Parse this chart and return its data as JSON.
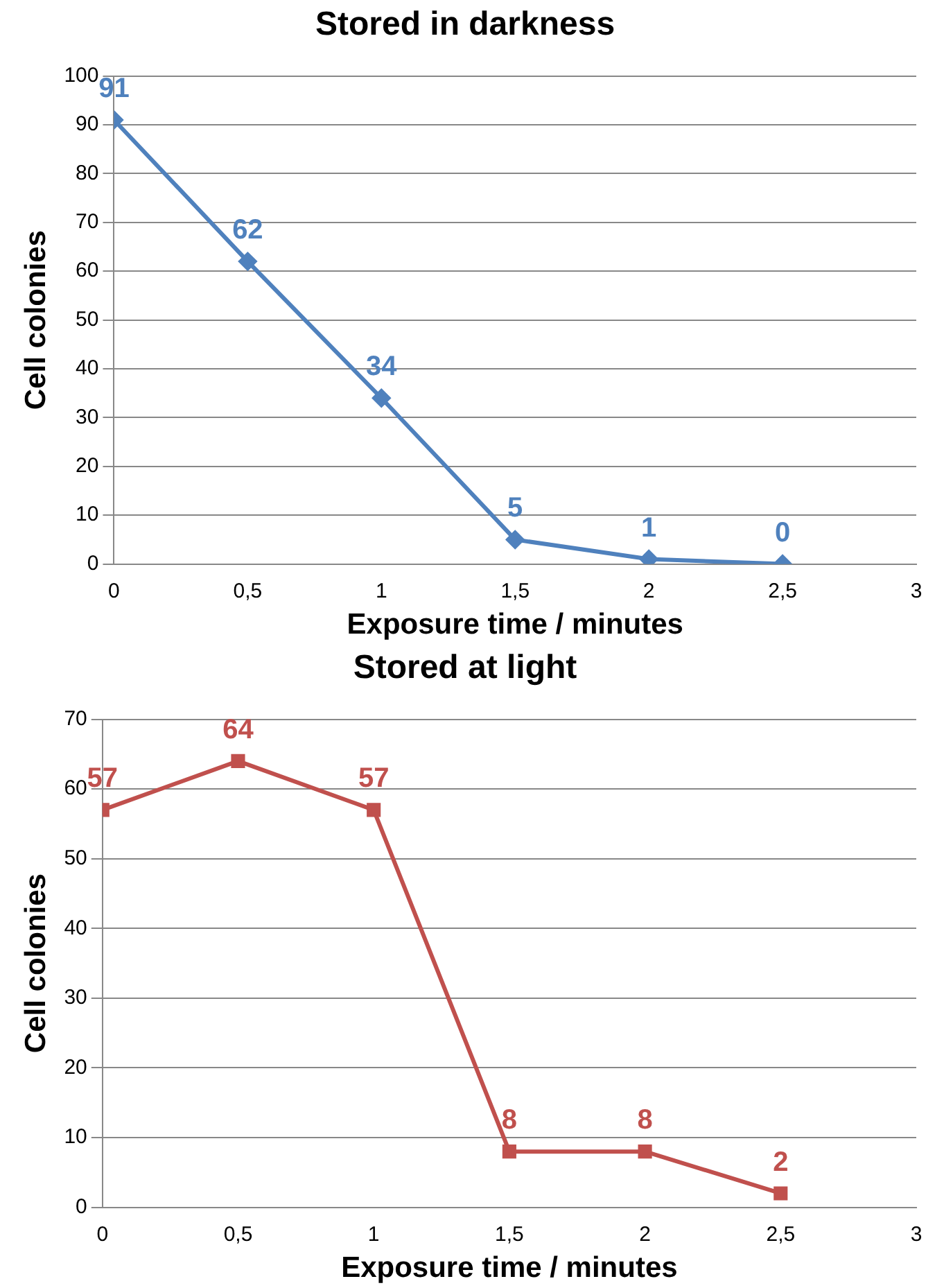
{
  "chart_data": [
    {
      "type": "line",
      "title": "Stored in darkness",
      "xlabel": "Exposure time / minutes",
      "ylabel": "Cell colonies",
      "x": [
        0,
        0.5,
        1,
        1.5,
        2,
        2.5
      ],
      "series": [
        {
          "color": "#4f81bd",
          "values": [
            91,
            62,
            34,
            5,
            1,
            0
          ]
        }
      ],
      "xlim": [
        0,
        3
      ],
      "xticks": [
        0,
        {
          "value": 0.5,
          "label": "0,5"
        },
        1,
        {
          "value": 1.5,
          "label": "1,5"
        },
        2,
        {
          "value": 2.5,
          "label": "2,5"
        },
        3
      ],
      "ylim": [
        0,
        100
      ],
      "yticks": [
        0,
        10,
        20,
        30,
        40,
        50,
        60,
        70,
        80,
        90,
        100
      ],
      "grid": "y",
      "legend": false,
      "marker": "diamond",
      "line_style": "solid",
      "data_labels": true
    },
    {
      "type": "line",
      "title": "Stored at light",
      "xlabel": "Exposure time / minutes",
      "ylabel": "Cell colonies",
      "x": [
        0,
        0.5,
        1,
        1.5,
        2,
        2.5
      ],
      "series": [
        {
          "color": "#c0504d",
          "values": [
            57,
            64,
            57,
            8,
            8,
            2
          ]
        }
      ],
      "xlim": [
        0,
        3
      ],
      "xticks": [
        0,
        {
          "value": 0.5,
          "label": "0,5"
        },
        1,
        {
          "value": 1.5,
          "label": "1,5"
        },
        2,
        {
          "value": 2.5,
          "label": "2,5"
        },
        3
      ],
      "ylim": [
        0,
        70
      ],
      "yticks": [
        0,
        10,
        20,
        30,
        40,
        50,
        60,
        70
      ],
      "grid": "y",
      "legend": false,
      "marker": "square",
      "line_style": "solid",
      "data_labels": true
    }
  ]
}
